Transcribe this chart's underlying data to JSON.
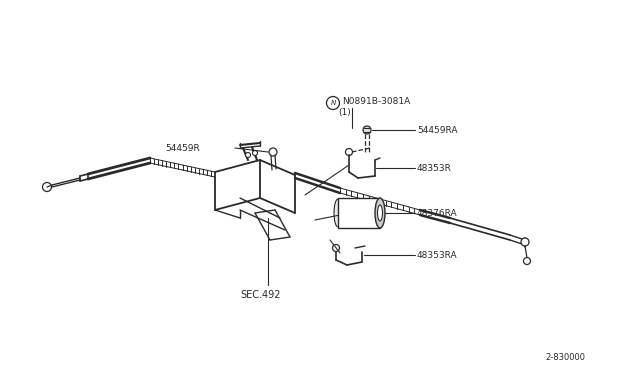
{
  "bg_color": "#ffffff",
  "lc": "#2a2a2a",
  "tc": "#2a2a2a",
  "fig_width": 6.4,
  "fig_height": 3.72,
  "dpi": 100,
  "labels": {
    "N_part": "N0891B-3081A",
    "N_qty": "(1)",
    "part1": "54459R",
    "part2": "54459RA",
    "part3": "48353R",
    "part4": "48376RA",
    "part5": "48353RA",
    "sec": "SEC.492",
    "diagram_id": "2-830000"
  }
}
